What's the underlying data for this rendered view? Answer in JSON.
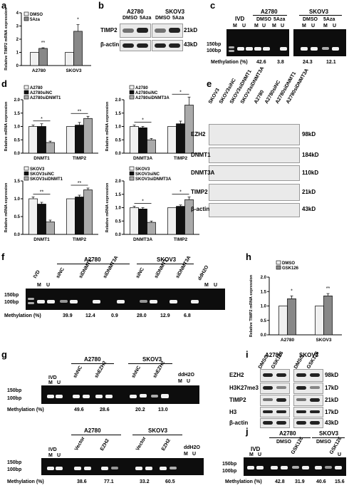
{
  "panels": {
    "a": {
      "label": "a",
      "ylabel": "Relative TIMP2 mRNA expression",
      "legend": [
        "DMSO",
        "5Aza"
      ],
      "categories": [
        "A2780",
        "SKOV3"
      ],
      "ticks": [
        "0",
        "1",
        "2",
        "3",
        "4"
      ],
      "stars": [
        "**",
        "*"
      ]
    },
    "b": {
      "label": "b",
      "groups": [
        "A2780",
        "SKOV3"
      ],
      "lanes": [
        "DMSO",
        "5Aza",
        "DMSO",
        "5Aza"
      ],
      "rows": [
        "TIMP2",
        "β-actin"
      ],
      "sizes": [
        "21kD",
        "43kD"
      ]
    },
    "c": {
      "label": "c",
      "groups": [
        "IVD",
        "A2780",
        "SKOV3"
      ],
      "subgroups": [
        "DMSO",
        "5Aza",
        "DMSO",
        "5Aza"
      ],
      "mu": [
        "M",
        "U"
      ],
      "ladder": [
        "150bp",
        "100bp"
      ],
      "meth_label": "Methylation (%)",
      "meth_values": [
        "42.6",
        "3.8",
        "24.3",
        "12.1"
      ]
    },
    "d": {
      "label": "d",
      "ylabel": "Relative mRNA expression",
      "ticks": [
        "0.0",
        "0.5",
        "1.0",
        "1.5",
        "2.0"
      ],
      "charts": [
        {
          "legend": [
            "A2780",
            "A2780siNC",
            "A2780siDNMT1"
          ],
          "categories": [
            "DNMT1",
            "TIMP2"
          ],
          "stars": [
            "*",
            "**"
          ]
        },
        {
          "legend": [
            "A2780",
            "A2780siNC",
            "A2780siDNMT3A"
          ],
          "categories": [
            "DNMT3A",
            "TIMP2"
          ],
          "stars": [
            "*",
            "*"
          ]
        },
        {
          "legend": [
            "SKOV3",
            "SKOV3siNC",
            "SKOV3siDNMT1"
          ],
          "categories": [
            "DNMT1",
            "TIMP2"
          ],
          "stars": [
            "**",
            "**"
          ]
        },
        {
          "legend": [
            "SKOV3",
            "SKOV3siNC",
            "SKOV3siDNMT3A"
          ],
          "categories": [
            "DNMT3A",
            "TIMP2"
          ],
          "stars": [
            "*",
            "*"
          ]
        }
      ]
    },
    "e": {
      "label": "e",
      "lanes": [
        "SKOV3",
        "SKOV3siNC",
        "SKOV3siDNMT1",
        "SKOV3siDNMT3A",
        "A2780",
        "A2780siNC",
        "A2780siDNMT1",
        "A2780siDNMT3A"
      ],
      "rows": [
        "EZH2",
        "DNMT1",
        "DNMT3A",
        "TIMP2",
        "β-actin"
      ],
      "sizes": [
        "98kD",
        "184kD",
        "110kD",
        "21kD",
        "43kD"
      ]
    },
    "f": {
      "label": "f",
      "groups": [
        "A2780",
        "SKOV3"
      ],
      "lanes": [
        "IVD",
        "siNC",
        "siDNMT1",
        "siDNMT3A",
        "siNC",
        "siDNMT1",
        "siDNMT3A",
        "ddH2O"
      ],
      "mu": [
        "M",
        "U"
      ],
      "ladder": [
        "150bp",
        "100bp"
      ],
      "meth_label": "Methylation (%)",
      "meth_values": [
        "39.9",
        "12.4",
        "0.9",
        "28.0",
        "12.9",
        "6.8"
      ]
    },
    "g": {
      "label": "g",
      "top": {
        "groups": [
          "A2780",
          "SKOV3"
        ],
        "lanes": [
          "IVD",
          "shNC",
          "shEZH2",
          "shNC",
          "shEZH2",
          "ddH2O"
        ],
        "meth_values": [
          "49.6",
          "28.6",
          "20.2",
          "13.0"
        ]
      },
      "bottom": {
        "groups": [
          "A2780",
          "SKOV3"
        ],
        "lanes": [
          "IVD",
          "Vector",
          "EZH2",
          "Vector",
          "EZH2",
          "ddH2O"
        ],
        "meth_values": [
          "38.6",
          "77.1",
          "33.2",
          "60.5"
        ]
      },
      "mu": [
        "M",
        "U"
      ],
      "ladder": [
        "150bp",
        "100bp"
      ],
      "meth_label": "Methylation (%)"
    },
    "h": {
      "label": "h",
      "ylabel": "Relative TIMP2 mRNA expression",
      "legend": [
        "DMSO",
        "GSK126"
      ],
      "categories": [
        "A2780",
        "SKOV3"
      ],
      "ticks": [
        "0.0",
        "0.5",
        "1.0",
        "1.5",
        "2.0"
      ],
      "stars": [
        "*",
        "**"
      ]
    },
    "i": {
      "label": "i",
      "groups": [
        "A2780",
        "SKOV3"
      ],
      "lanes": [
        "DMSO",
        "GSK126",
        "DMSO",
        "GSK126"
      ],
      "rows": [
        "EZH2",
        "H3K27me3",
        "TIMP2",
        "H3",
        "β-actin"
      ],
      "sizes": [
        "98kD",
        "17kD",
        "21kD",
        "17kD",
        "43kD"
      ]
    },
    "j": {
      "label": "j",
      "groups": [
        "IVD",
        "A2780",
        "SKOV3"
      ],
      "subgroups": [
        "DMSO",
        "GSK126",
        "DMSO",
        "GSK126"
      ],
      "mu": [
        "M",
        "U"
      ],
      "ladder": [
        "150bp",
        "100bp"
      ],
      "meth_label": "Methylation (%)",
      "meth_values": [
        "42.8",
        "31.9",
        "40.6",
        "15.6"
      ]
    }
  },
  "chart_data": [
    {
      "type": "bar",
      "panel": "a",
      "categories": [
        "A2780",
        "SKOV3"
      ],
      "ylabel": "Relative TIMP2 mRNA expression",
      "ylim": [
        0,
        4
      ],
      "series": [
        {
          "name": "DMSO",
          "values": [
            1.0,
            1.0
          ]
        },
        {
          "name": "5Aza",
          "values": [
            1.3,
            2.6
          ]
        }
      ],
      "errors": [
        [
          0,
          0
        ],
        [
          0.05,
          0.5
        ]
      ],
      "colors": [
        "#f0f0f0",
        "#888888"
      ]
    },
    {
      "type": "bar",
      "panel": "d1",
      "categories": [
        "DNMT1",
        "TIMP2"
      ],
      "ylabel": "Relative mRNA expression",
      "ylim": [
        0,
        2
      ],
      "series": [
        {
          "name": "A2780",
          "values": [
            1.0,
            1.0
          ]
        },
        {
          "name": "A2780siNC",
          "values": [
            1.0,
            1.05
          ]
        },
        {
          "name": "A2780siDNMT1",
          "values": [
            0.4,
            1.3
          ]
        }
      ],
      "errors": [
        [
          0.05,
          0
        ],
        [
          0.1,
          0.1
        ],
        [
          0.05,
          0.08
        ]
      ],
      "colors": [
        "#f0f0f0",
        "#111111",
        "#aaaaaa"
      ]
    },
    {
      "type": "bar",
      "panel": "d2",
      "categories": [
        "DNMT3A",
        "TIMP2"
      ],
      "ylabel": "Relative mRNA expression",
      "ylim": [
        0,
        2
      ],
      "series": [
        {
          "name": "A2780",
          "values": [
            1.0,
            1.0
          ]
        },
        {
          "name": "A2780siNC",
          "values": [
            0.95,
            1.1
          ]
        },
        {
          "name": "A2780siDNMT3A",
          "values": [
            0.5,
            1.8
          ]
        }
      ],
      "errors": [
        [
          0.05,
          0
        ],
        [
          0.05,
          0.1
        ],
        [
          0.05,
          0.3
        ]
      ],
      "colors": [
        "#f0f0f0",
        "#111111",
        "#aaaaaa"
      ]
    },
    {
      "type": "bar",
      "panel": "d3",
      "categories": [
        "DNMT1",
        "TIMP2"
      ],
      "ylabel": "Relative mRNA expression",
      "ylim": [
        0,
        1.5
      ],
      "series": [
        {
          "name": "SKOV3",
          "values": [
            1.0,
            1.0
          ]
        },
        {
          "name": "SKOV3siNC",
          "values": [
            0.85,
            1.05
          ]
        },
        {
          "name": "SKOV3siDNMT1",
          "values": [
            0.35,
            1.25
          ]
        }
      ],
      "errors": [
        [
          0.05,
          0
        ],
        [
          0.05,
          0.05
        ],
        [
          0.05,
          0.05
        ]
      ],
      "colors": [
        "#f0f0f0",
        "#111111",
        "#aaaaaa"
      ]
    },
    {
      "type": "bar",
      "panel": "d4",
      "categories": [
        "DNMT3A",
        "TIMP2"
      ],
      "ylabel": "Relative mRNA expression",
      "ylim": [
        0,
        2
      ],
      "series": [
        {
          "name": "SKOV3",
          "values": [
            1.0,
            1.0
          ]
        },
        {
          "name": "SKOV3siNC",
          "values": [
            0.95,
            1.05
          ]
        },
        {
          "name": "SKOV3siDNMT3A",
          "values": [
            0.45,
            1.3
          ]
        }
      ],
      "errors": [
        [
          0.05,
          0
        ],
        [
          0.05,
          0.05
        ],
        [
          0.05,
          0.1
        ]
      ],
      "colors": [
        "#f0f0f0",
        "#111111",
        "#aaaaaa"
      ]
    },
    {
      "type": "bar",
      "panel": "h",
      "categories": [
        "A2780",
        "SKOV3"
      ],
      "ylabel": "Relative TIMP2 mRNA expression",
      "ylim": [
        0,
        2
      ],
      "series": [
        {
          "name": "DMSO",
          "values": [
            1.0,
            1.0
          ]
        },
        {
          "name": "GSK126",
          "values": [
            1.25,
            1.35
          ]
        }
      ],
      "errors": [
        [
          0,
          0
        ],
        [
          0.1,
          0.08
        ]
      ],
      "colors": [
        "#f0f0f0",
        "#888888"
      ]
    }
  ]
}
